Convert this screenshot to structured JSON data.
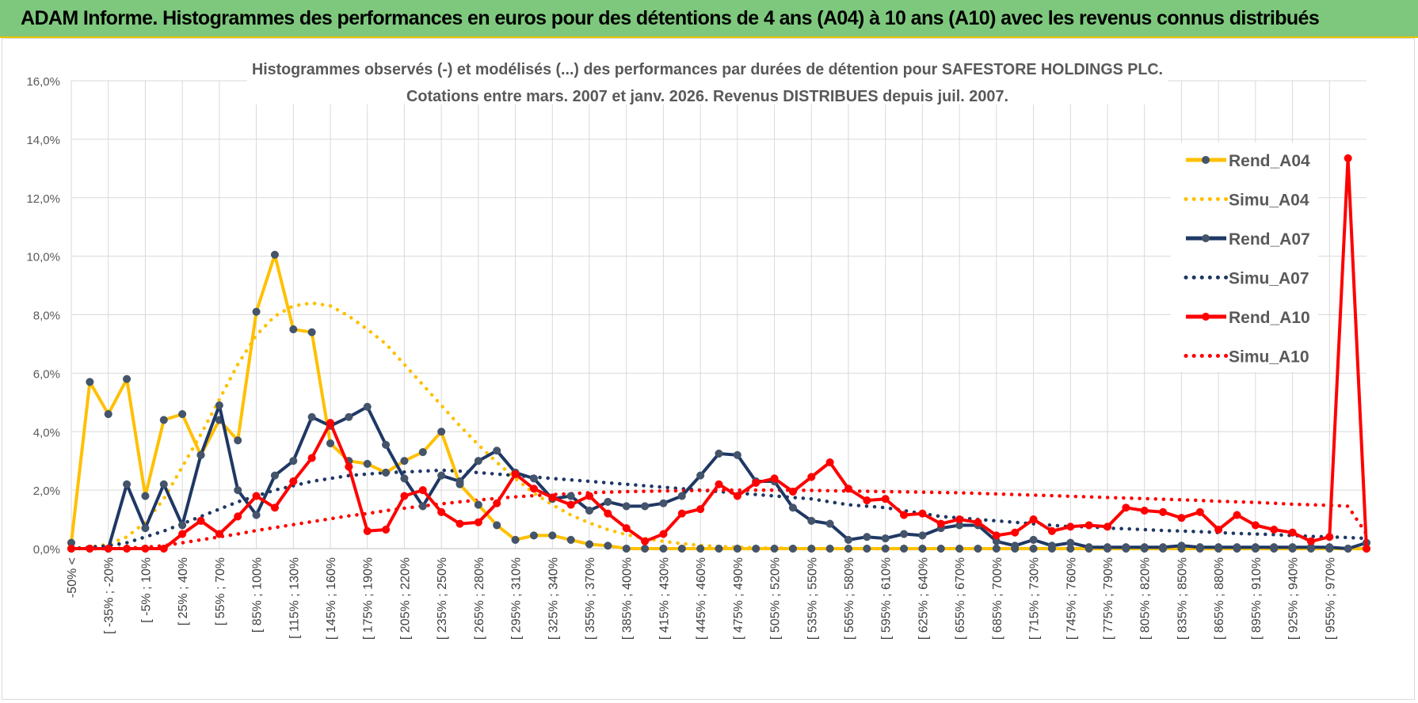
{
  "header": {
    "title": "ADAM Informe. Histogrammes des performances en euros pour des détentions de 4 ans (A04) à 10 ans (A10) avec les revenus connus distribués"
  },
  "colors": {
    "banner": "#7ec87e",
    "a04": "#ffc000",
    "a07": "#1f3864",
    "a10": "#ff0000",
    "grid": "#d9d9d9"
  },
  "chart_data": {
    "type": "line",
    "title": "Histogrammes observés (-) et modélisés (...) des performances par durées de détention pour SAFESTORE HOLDINGS PLC.",
    "subtitle": "Cotations entre mars. 2007 et janv. 2026. Revenus DISTRIBUES depuis juil. 2007.",
    "xlabel": "",
    "ylabel": "",
    "ylim": [
      0,
      16
    ],
    "y_ticks": [
      "0,0%",
      "2,0%",
      "4,0%",
      "6,0%",
      "8,0%",
      "10,0%",
      "12,0%",
      "14,0%",
      "16,0%"
    ],
    "x_ticks": [
      "-50% <",
      "[ -35% ; -20%",
      "[ -5% ; 10%",
      "[ 25% ; 40%",
      "[ 55% ; 70%",
      "[ 85% ; 100%",
      "[ 115% ; 130%",
      "[ 145% ; 160%",
      "[ 175% ; 190%",
      "[ 205% ; 220%",
      "[ 235% ; 250%",
      "[ 265% ; 280%",
      "[ 295% ; 310%",
      "[ 325% ; 340%",
      "[ 355% ; 370%",
      "[ 385% ; 400%",
      "[ 415% ; 430%",
      "[ 445% ; 460%",
      "[ 475% ; 490%",
      "[ 505% ; 520%",
      "[ 535% ; 550%",
      "[ 565% ; 580%",
      "[ 595% ; 610%",
      "[ 625% ; 640%",
      "[ 655% ; 670%",
      "[ 685% ; 700%",
      "[ 715% ; 730%",
      "[ 745% ; 760%",
      "[ 775% ; 790%",
      "[ 805% ; 820%",
      "[ 835% ; 850%",
      "[ 865% ; 880%",
      "[ 895% ; 910%",
      "[ 925% ; 940%",
      "[ 955% ; 970%"
    ],
    "n_points": 71,
    "legend_position": "right",
    "series": [
      {
        "name": "Rend_A04",
        "style": "solid-markers",
        "color": "#ffc000",
        "values": [
          0.2,
          5.7,
          4.6,
          5.8,
          1.8,
          4.4,
          4.6,
          3.2,
          4.4,
          3.7,
          8.1,
          10.05,
          7.5,
          7.4,
          3.6,
          3.0,
          2.9,
          2.6,
          3.0,
          3.3,
          4.0,
          2.2,
          1.5,
          0.8,
          0.3,
          0.45,
          0.45,
          0.3,
          0.15,
          0.1,
          0,
          0,
          0,
          0,
          0,
          0,
          0,
          0,
          0,
          0,
          0,
          0,
          0,
          0,
          0,
          0,
          0,
          0,
          0,
          0,
          0,
          0,
          0,
          0,
          0,
          0,
          0,
          0,
          0,
          0,
          0,
          0,
          0,
          0,
          0,
          0,
          0,
          0,
          0,
          0,
          0
        ]
      },
      {
        "name": "Simu_A04",
        "style": "dotted",
        "color": "#ffc000",
        "values": [
          0,
          0.05,
          0.15,
          0.4,
          0.9,
          1.7,
          2.8,
          3.9,
          5.1,
          6.3,
          7.3,
          7.95,
          8.3,
          8.4,
          8.3,
          7.95,
          7.5,
          7.0,
          6.3,
          5.6,
          4.9,
          4.2,
          3.55,
          2.95,
          2.4,
          1.9,
          1.5,
          1.15,
          0.88,
          0.65,
          0.48,
          0.35,
          0.25,
          0.17,
          0.11,
          0.07,
          0.05,
          0.03,
          0.02,
          0.01,
          0,
          0,
          0,
          0,
          0,
          0,
          0,
          0,
          0,
          0,
          0,
          0,
          0,
          0,
          0,
          0,
          0,
          0,
          0,
          0,
          0,
          0,
          0,
          0,
          0,
          0,
          0,
          0,
          0,
          0,
          0
        ]
      },
      {
        "name": "Rend_A07",
        "style": "solid-markers",
        "color": "#1f3864",
        "values": [
          0,
          0,
          0,
          2.2,
          0.7,
          2.2,
          0.8,
          3.2,
          4.9,
          2.0,
          1.15,
          2.5,
          3.0,
          4.5,
          4.2,
          4.5,
          4.85,
          3.55,
          2.4,
          1.45,
          2.5,
          2.3,
          3.0,
          3.35,
          2.6,
          2.4,
          1.7,
          1.8,
          1.3,
          1.6,
          1.45,
          1.45,
          1.55,
          1.8,
          2.5,
          3.25,
          3.2,
          2.3,
          2.3,
          1.4,
          0.95,
          0.85,
          0.3,
          0.4,
          0.35,
          0.5,
          0.45,
          0.7,
          0.8,
          0.8,
          0.25,
          0.1,
          0.3,
          0.1,
          0.2,
          0.05,
          0.05,
          0.05,
          0.05,
          0.05,
          0.1,
          0.05,
          0.05,
          0.05,
          0.05,
          0.05,
          0.05,
          0.05,
          0.05,
          0,
          0.2
        ]
      },
      {
        "name": "Simu_A07",
        "style": "dotted",
        "color": "#1f3864",
        "values": [
          0,
          0.05,
          0.1,
          0.2,
          0.4,
          0.6,
          0.85,
          1.1,
          1.35,
          1.6,
          1.8,
          2.0,
          2.15,
          2.3,
          2.4,
          2.5,
          2.55,
          2.6,
          2.62,
          2.65,
          2.68,
          2.65,
          2.6,
          2.55,
          2.5,
          2.45,
          2.4,
          2.35,
          2.3,
          2.25,
          2.2,
          2.15,
          2.1,
          2.05,
          2.0,
          1.95,
          1.9,
          1.85,
          1.8,
          1.75,
          1.7,
          1.6,
          1.5,
          1.45,
          1.4,
          1.3,
          1.2,
          1.1,
          1.05,
          1.0,
          0.95,
          0.9,
          0.85,
          0.8,
          0.75,
          0.75,
          0.7,
          0.68,
          0.65,
          0.62,
          0.6,
          0.58,
          0.55,
          0.52,
          0.5,
          0.48,
          0.45,
          0.42,
          0.4,
          0.38,
          0.35
        ]
      },
      {
        "name": "Rend_A10",
        "style": "solid-markers",
        "color": "#ff0000",
        "values": [
          0,
          0,
          0,
          0,
          0,
          0,
          0.5,
          0.95,
          0.5,
          1.1,
          1.8,
          1.4,
          2.3,
          3.1,
          4.3,
          2.8,
          0.6,
          0.65,
          1.8,
          2.0,
          1.25,
          0.85,
          0.9,
          1.55,
          2.55,
          2.05,
          1.75,
          1.5,
          1.8,
          1.2,
          0.7,
          0.25,
          0.5,
          1.2,
          1.35,
          2.2,
          1.8,
          2.25,
          2.4,
          1.95,
          2.45,
          2.95,
          2.05,
          1.65,
          1.7,
          1.15,
          1.2,
          0.85,
          1.0,
          0.9,
          0.45,
          0.55,
          1.0,
          0.6,
          0.75,
          0.8,
          0.75,
          1.4,
          1.3,
          1.25,
          1.05,
          1.25,
          0.65,
          1.15,
          0.8,
          0.65,
          0.55,
          0.25,
          0.4,
          13.35,
          0
        ]
      },
      {
        "name": "Simu_A10",
        "style": "dotted",
        "color": "#ff0000",
        "values": [
          0,
          0,
          0,
          0.02,
          0.05,
          0.1,
          0.2,
          0.3,
          0.4,
          0.5,
          0.62,
          0.72,
          0.82,
          0.92,
          1.02,
          1.12,
          1.2,
          1.3,
          1.38,
          1.46,
          1.53,
          1.6,
          1.66,
          1.72,
          1.77,
          1.81,
          1.85,
          1.88,
          1.91,
          1.93,
          1.95,
          1.96,
          1.97,
          1.98,
          1.99,
          2.0,
          2.0,
          2.0,
          2.0,
          2.0,
          1.99,
          1.98,
          1.97,
          1.96,
          1.95,
          1.94,
          1.93,
          1.92,
          1.91,
          1.89,
          1.87,
          1.85,
          1.83,
          1.81,
          1.79,
          1.77,
          1.75,
          1.73,
          1.71,
          1.69,
          1.67,
          1.65,
          1.62,
          1.6,
          1.58,
          1.55,
          1.52,
          1.5,
          1.48,
          1.45,
          0.5
        ]
      }
    ]
  }
}
